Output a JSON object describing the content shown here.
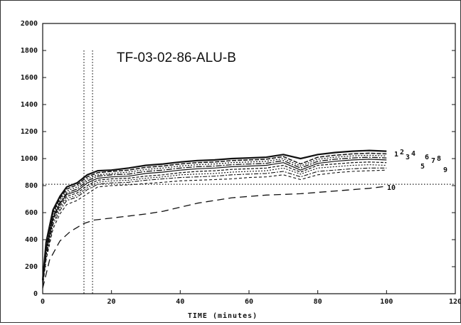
{
  "chart_data": {
    "type": "line",
    "title": "TF-03-02-86-ALU-B",
    "xlabel": "TIME (minutes)",
    "ylabel": "",
    "xlim": [
      0,
      120
    ],
    "ylim": [
      0,
      2000
    ],
    "x_ticks": [
      "0",
      "20",
      "40",
      "60",
      "80",
      "100",
      "120"
    ],
    "y_ticks": [
      "0",
      "200",
      "400",
      "600",
      "800",
      "1000",
      "1200",
      "1400",
      "1600",
      "1800",
      "2000"
    ],
    "grid": false,
    "reference_lines": [
      {
        "orientation": "horizontal",
        "value": 810
      },
      {
        "orientation": "vertical",
        "value": 12
      },
      {
        "orientation": "vertical",
        "value": 14.5
      }
    ],
    "series_label_text": "1 2 3 4 5 6 7 8 9 10",
    "series": [
      {
        "name": "1",
        "x": [
          0,
          1,
          3,
          5,
          7,
          10,
          13,
          16,
          20,
          25,
          30,
          35,
          40,
          45,
          50,
          55,
          60,
          65,
          70,
          75,
          80,
          85,
          90,
          95,
          100
        ],
        "y": [
          100,
          380,
          620,
          720,
          790,
          820,
          880,
          910,
          915,
          930,
          950,
          960,
          975,
          985,
          990,
          1000,
          1005,
          1010,
          1030,
          1000,
          1030,
          1045,
          1055,
          1060,
          1055
        ]
      },
      {
        "name": "2",
        "x": [
          0,
          1,
          3,
          5,
          7,
          10,
          13,
          16,
          20,
          25,
          30,
          35,
          40,
          45,
          50,
          55,
          60,
          65,
          70,
          75,
          80,
          85,
          90,
          95,
          100
        ],
        "y": [
          90,
          360,
          600,
          705,
          775,
          805,
          865,
          895,
          905,
          915,
          935,
          945,
          960,
          970,
          975,
          985,
          990,
          995,
          1015,
          960,
          1010,
          1025,
          1035,
          1040,
          1035
        ]
      },
      {
        "name": "3",
        "x": [
          0,
          1,
          3,
          5,
          7,
          10,
          13,
          16,
          20,
          25,
          30,
          35,
          40,
          45,
          50,
          55,
          60,
          65,
          70,
          75,
          80,
          85,
          90,
          95,
          100
        ],
        "y": [
          85,
          340,
          585,
          690,
          760,
          790,
          850,
          880,
          890,
          900,
          920,
          930,
          945,
          955,
          960,
          970,
          975,
          980,
          1000,
          945,
          995,
          1010,
          1020,
          1025,
          1020
        ]
      },
      {
        "name": "4",
        "x": [
          0,
          1,
          3,
          5,
          7,
          10,
          13,
          16,
          20,
          25,
          30,
          35,
          40,
          45,
          50,
          55,
          60,
          65,
          70,
          75,
          80,
          85,
          90,
          95,
          100
        ],
        "y": [
          80,
          330,
          570,
          675,
          745,
          775,
          835,
          870,
          880,
          885,
          905,
          915,
          930,
          940,
          945,
          955,
          960,
          965,
          985,
          930,
          980,
          995,
          1005,
          1010,
          1005
        ]
      },
      {
        "name": "5",
        "x": [
          0,
          1,
          3,
          5,
          7,
          10,
          13,
          16,
          20,
          25,
          30,
          35,
          40,
          45,
          50,
          55,
          60,
          65,
          70,
          75,
          80,
          85,
          90,
          95,
          100
        ],
        "y": [
          75,
          320,
          560,
          665,
          735,
          760,
          820,
          855,
          865,
          870,
          890,
          900,
          915,
          925,
          930,
          940,
          945,
          950,
          970,
          915,
          965,
          980,
          990,
          995,
          990
        ]
      },
      {
        "name": "6",
        "x": [
          0,
          1,
          3,
          5,
          7,
          10,
          13,
          16,
          20,
          25,
          30,
          35,
          40,
          45,
          50,
          55,
          60,
          65,
          70,
          75,
          80,
          85,
          90,
          95,
          100
        ],
        "y": [
          70,
          300,
          545,
          650,
          720,
          745,
          800,
          840,
          850,
          855,
          870,
          880,
          895,
          905,
          910,
          920,
          925,
          930,
          950,
          900,
          950,
          960,
          970,
          975,
          970
        ]
      },
      {
        "name": "7",
        "x": [
          0,
          1,
          3,
          5,
          7,
          10,
          13,
          16,
          20,
          25,
          30,
          35,
          40,
          45,
          50,
          55,
          60,
          65,
          70,
          75,
          80,
          85,
          90,
          95,
          100
        ],
        "y": [
          65,
          290,
          530,
          635,
          705,
          730,
          785,
          825,
          835,
          840,
          855,
          865,
          880,
          885,
          890,
          900,
          905,
          910,
          930,
          885,
          930,
          940,
          950,
          955,
          950
        ]
      },
      {
        "name": "8",
        "x": [
          0,
          1,
          3,
          5,
          7,
          10,
          13,
          16,
          20,
          25,
          30,
          35,
          40,
          45,
          50,
          55,
          60,
          65,
          70,
          75,
          80,
          85,
          90,
          95,
          100
        ],
        "y": [
          60,
          270,
          510,
          615,
          690,
          715,
          770,
          810,
          820,
          825,
          840,
          850,
          860,
          865,
          870,
          880,
          885,
          890,
          905,
          865,
          905,
          915,
          925,
          930,
          930
        ]
      },
      {
        "name": "9",
        "x": [
          0,
          1,
          3,
          5,
          7,
          10,
          13,
          16,
          20,
          25,
          30,
          35,
          40,
          45,
          50,
          55,
          60,
          65,
          70,
          75,
          80,
          85,
          90,
          95,
          100
        ],
        "y": [
          55,
          250,
          480,
          590,
          660,
          690,
          740,
          790,
          800,
          805,
          815,
          825,
          835,
          840,
          845,
          850,
          860,
          865,
          880,
          845,
          880,
          895,
          905,
          910,
          915
        ]
      },
      {
        "name": "10",
        "x": [
          0,
          2,
          5,
          8,
          10,
          12,
          15,
          20,
          25,
          30,
          35,
          40,
          45,
          50,
          55,
          60,
          65,
          70,
          75,
          80,
          85,
          90,
          95,
          100
        ],
        "y": [
          40,
          250,
          390,
          460,
          490,
          520,
          545,
          560,
          575,
          590,
          610,
          640,
          670,
          690,
          710,
          720,
          730,
          735,
          740,
          750,
          760,
          770,
          780,
          795
        ]
      }
    ]
  }
}
